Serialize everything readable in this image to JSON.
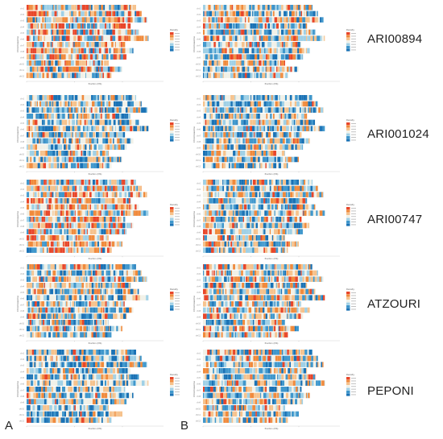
{
  "figure": {
    "panel_letters": [
      "A",
      "B"
    ],
    "row_labels": [
      "ARI00894",
      "ARI001024",
      "ARI00747",
      "ATZOURI",
      "PEPONI"
    ],
    "axis": {
      "ylabel": "Chromosome",
      "xlabel": "Position (Mb)"
    },
    "legend_title": "Density",
    "colors": {
      "deep_blue": "#1a72b5",
      "mid_blue": "#3f97cc",
      "light_blue": "#9fd0e6",
      "pale": "#f1f1e8",
      "light_orange": "#f6c28c",
      "orange": "#f08a3c",
      "red": "#e8462a"
    }
  },
  "chart_data": [
    {
      "type": "heatmap",
      "panel": "A",
      "sample": "ARI00894",
      "ylabel": "Chromosome",
      "xlabel": "Position (Mb)",
      "chromosomes": 12,
      "chromosome_lengths_rel": [
        0.8,
        0.84,
        0.88,
        0.76,
        0.82,
        0.89,
        0.72,
        0.78,
        0.73,
        0.6,
        0.7,
        0.62
      ],
      "density_bias": 0.62,
      "legend": "Density"
    },
    {
      "type": "heatmap",
      "panel": "B",
      "sample": "ARI00894",
      "ylabel": "Chromosome",
      "xlabel": "Position (Mb)",
      "chromosomes": 12,
      "chromosome_lengths_rel": [
        0.8,
        0.84,
        0.88,
        0.76,
        0.82,
        0.89,
        0.72,
        0.78,
        0.73,
        0.6,
        0.7,
        0.62
      ],
      "density_bias": 0.45,
      "legend": "Density"
    },
    {
      "type": "heatmap",
      "panel": "A",
      "sample": "ARI001024",
      "ylabel": "Chromosome",
      "xlabel": "Position (Mb)",
      "chromosomes": 12,
      "chromosome_lengths_rel": [
        0.8,
        0.84,
        0.88,
        0.76,
        0.82,
        0.89,
        0.72,
        0.78,
        0.73,
        0.6,
        0.7,
        0.62
      ],
      "density_bias": 0.3,
      "legend": "Density"
    },
    {
      "type": "heatmap",
      "panel": "B",
      "sample": "ARI001024",
      "ylabel": "Chromosome",
      "xlabel": "Position (Mb)",
      "chromosomes": 12,
      "chromosome_lengths_rel": [
        0.8,
        0.84,
        0.88,
        0.76,
        0.82,
        0.89,
        0.72,
        0.78,
        0.73,
        0.6,
        0.7,
        0.62
      ],
      "density_bias": 0.32,
      "legend": "Density"
    },
    {
      "type": "heatmap",
      "panel": "A",
      "sample": "ARI00747",
      "ylabel": "Chromosome",
      "xlabel": "Position (Mb)",
      "chromosomes": 12,
      "chromosome_lengths_rel": [
        0.8,
        0.84,
        0.88,
        0.76,
        0.82,
        0.89,
        0.72,
        0.78,
        0.73,
        0.6,
        0.7,
        0.62
      ],
      "density_bias": 0.65,
      "legend": "Density"
    },
    {
      "type": "heatmap",
      "panel": "B",
      "sample": "ARI00747",
      "ylabel": "Chromosome",
      "xlabel": "Position (Mb)",
      "chromosomes": 12,
      "chromosome_lengths_rel": [
        0.8,
        0.84,
        0.88,
        0.76,
        0.82,
        0.89,
        0.72,
        0.78,
        0.73,
        0.6,
        0.7,
        0.62
      ],
      "density_bias": 0.4,
      "legend": "Density"
    },
    {
      "type": "heatmap",
      "panel": "A",
      "sample": "ATZOURI",
      "ylabel": "Chromosome",
      "xlabel": "Position (Mb)",
      "chromosomes": 12,
      "chromosome_lengths_rel": [
        0.8,
        0.84,
        0.88,
        0.76,
        0.82,
        0.89,
        0.72,
        0.78,
        0.73,
        0.6,
        0.7,
        0.62
      ],
      "density_bias": 0.42,
      "legend": "Density"
    },
    {
      "type": "heatmap",
      "panel": "B",
      "sample": "ATZOURI",
      "ylabel": "Chromosome",
      "xlabel": "Position (Mb)",
      "chromosomes": 12,
      "chromosome_lengths_rel": [
        0.8,
        0.84,
        0.88,
        0.76,
        0.82,
        0.89,
        0.72,
        0.78,
        0.73,
        0.6,
        0.7,
        0.62
      ],
      "density_bias": 0.5,
      "legend": "Density"
    },
    {
      "type": "heatmap",
      "panel": "A",
      "sample": "PEPONI",
      "ylabel": "Chromosome",
      "xlabel": "Position (Mb)",
      "chromosomes": 12,
      "chromosome_lengths_rel": [
        0.8,
        0.84,
        0.88,
        0.76,
        0.82,
        0.89,
        0.72,
        0.78,
        0.73,
        0.6,
        0.7,
        0.62
      ],
      "density_bias": 0.33,
      "legend": "Density"
    },
    {
      "type": "heatmap",
      "panel": "B",
      "sample": "PEPONI",
      "ylabel": "Chromosome",
      "xlabel": "Position (Mb)",
      "chromosomes": 12,
      "chromosome_lengths_rel": [
        0.8,
        0.84,
        0.88,
        0.76,
        0.82,
        0.89,
        0.72,
        0.78,
        0.73,
        0.6,
        0.7,
        0.62
      ],
      "density_bias": 0.44,
      "legend": "Density"
    }
  ]
}
